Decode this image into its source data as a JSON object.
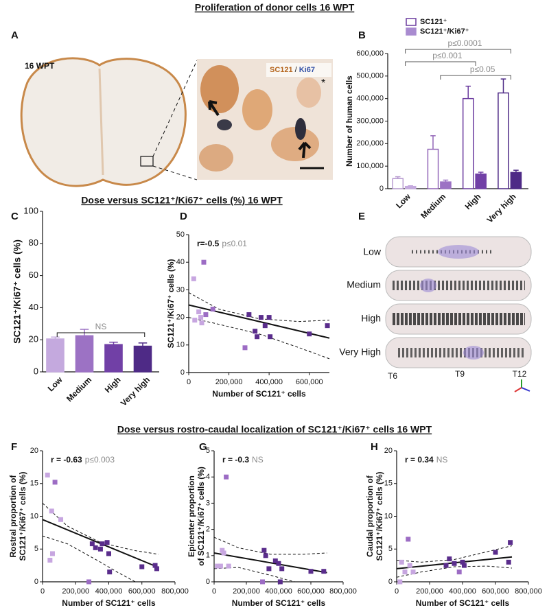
{
  "headings": [
    "Proliferation of donor cells 16 WPT",
    "Dose versus SC121⁺/Ki67⁺ cells (%) 16 WPT",
    "Dose versus rostro-caudal localization of SC121⁺/Ki67⁺ cells 16 WPT"
  ],
  "panels": [
    "A",
    "B",
    "C",
    "D",
    "E",
    "F",
    "G",
    "H"
  ],
  "image_a": {
    "label": "16 WPT",
    "stain_1": "SC121",
    "separator": "/",
    "stain_2": "Ki67",
    "marker": "*"
  },
  "image_e": {
    "rows": [
      "Low",
      "Medium",
      "High",
      "Very High"
    ],
    "levels": [
      "T6",
      "T9",
      "T12"
    ]
  },
  "chart_data": [
    {
      "type": "bar",
      "ylabel": [
        "Number of human cells"
      ],
      "categories": [
        "Low",
        "Medium",
        "High",
        "Very high"
      ],
      "series": [
        {
          "name": "SC121⁺",
          "color": "#ffffff",
          "strokes": [
            "#b79ad0",
            "#9266b8",
            "#6a3a9e",
            "#4e2a86"
          ],
          "values": [
            45000,
            175000,
            400000,
            425000
          ],
          "errors": [
            8000,
            60000,
            55000,
            62000
          ]
        },
        {
          "name": "SC121⁺/Ki67⁺",
          "color": "#a98bd0",
          "colors": [
            "#c4a9de",
            "#9c72c4",
            "#7140a6",
            "#4e2a86"
          ],
          "values": [
            10000,
            30000,
            65000,
            72000
          ],
          "errors": [
            3000,
            8000,
            8000,
            10000
          ]
        }
      ],
      "annotations": [
        {
          "text": "p≤0.0001",
          "from": "Low",
          "to": "Very high"
        },
        {
          "text": "p≤0.001",
          "from": "Low",
          "to": "High"
        },
        {
          "text": "p≤0.05",
          "from": "Medium",
          "to": "Very high"
        }
      ],
      "ylim": [
        0,
        600000
      ],
      "yticks": [
        0,
        {
          "value": 100000,
          "label": "100,000"
        },
        {
          "value": 200000,
          "label": "200,000"
        },
        {
          "value": 300000,
          "label": "300,000"
        },
        {
          "value": 400000,
          "label": "400,000"
        },
        {
          "value": 500000,
          "label": "500,000"
        },
        {
          "value": 600000,
          "label": "600,000"
        }
      ]
    },
    {
      "type": "bar",
      "ylabel": [
        "SC121⁺/Ki67⁺ cells (%)"
      ],
      "categories": [
        "Low",
        "Medium",
        "High",
        "Very high"
      ],
      "values": [
        20.5,
        22.5,
        17,
        16
      ],
      "errors": [
        1.2,
        4,
        1.5,
        2
      ],
      "colors": [
        "#c4a9de",
        "#9c72c4",
        "#7140a6",
        "#4e2a86"
      ],
      "annotations": [
        {
          "text": "NS",
          "from": "Low",
          "to": "Very high"
        }
      ],
      "ylim": [
        0,
        100
      ],
      "yticks": [
        0,
        20,
        40,
        60,
        80,
        100
      ]
    },
    {
      "type": "scatter",
      "ylabel": [
        "SC121⁺/Ki67⁺ cells (%)"
      ],
      "xlabel": "Number of SC121⁺ cells",
      "r_label": "r=-0.5",
      "p_label": "p≤0.01",
      "series": [
        {
          "color": "#c7a6e0",
          "x": [
            25000,
            30000,
            50000,
            60000,
            65000
          ],
          "values": [
            34,
            19,
            22,
            20,
            18
          ]
        },
        {
          "color": "#9c6cc4",
          "x": [
            75000,
            85000,
            120000,
            280000
          ],
          "values": [
            40,
            21,
            23,
            9
          ]
        },
        {
          "color": "#5a2d8c",
          "x": [
            300000,
            330000,
            340000,
            360000,
            380000,
            400000,
            405000,
            600000,
            690000
          ],
          "values": [
            21,
            15,
            13,
            20,
            17,
            20,
            13,
            14,
            17
          ]
        }
      ],
      "fit": {
        "x": [
          0,
          700000
        ],
        "y": [
          24.5,
          12.5
        ]
      },
      "ci_upper": {
        "x": [
          0,
          150000,
          350000,
          550000,
          700000
        ],
        "y": [
          29,
          23,
          19.5,
          18.5,
          19
        ]
      },
      "ci_lower": {
        "x": [
          0,
          150000,
          350000,
          550000,
          700000
        ],
        "y": [
          20,
          17.5,
          14,
          9,
          5
        ]
      },
      "xlim": [
        0,
        700000
      ],
      "ylim": [
        0,
        50
      ],
      "xticks": [
        0,
        {
          "value": 200000,
          "label": "200,000"
        },
        {
          "value": 400000,
          "label": "400,000"
        },
        {
          "value": 600000,
          "label": "600,000"
        }
      ],
      "yticks": [
        0,
        10,
        20,
        30,
        40,
        50
      ]
    },
    {
      "type": "scatter",
      "ylabel": [
        "Rostral proportion of",
        "SC121⁺/Ki67⁺ cells (%)"
      ],
      "xlabel": "Number of SC121⁺ cells",
      "r_label": "r = -0.63",
      "p_label": "p≤0.003",
      "series": [
        {
          "color": "#c7a6e0",
          "x": [
            30000,
            45000,
            55000,
            60000,
            110000
          ],
          "values": [
            16.3,
            3.3,
            10.8,
            4.3,
            9.5
          ]
        },
        {
          "color": "#9c6cc4",
          "x": [
            75000,
            280000
          ],
          "values": [
            15.2,
            0
          ]
        },
        {
          "color": "#5a2d8c",
          "x": [
            300000,
            320000,
            350000,
            360000,
            390000,
            400000,
            405000,
            600000,
            680000,
            690000
          ],
          "values": [
            5.8,
            5.2,
            5,
            5.8,
            6,
            4.3,
            1.5,
            2.3,
            2.5,
            2
          ]
        }
      ],
      "fit": {
        "x": [
          0,
          700000
        ],
        "y": [
          9.5,
          2.2
        ]
      },
      "ci_upper": {
        "x": [
          0,
          150000,
          350000,
          550000,
          700000
        ],
        "y": [
          12,
          8.5,
          6,
          4.8,
          4.2
        ]
      },
      "ci_lower": {
        "x": [
          0,
          150000,
          350000,
          450000,
          560000
        ],
        "y": [
          7,
          5.8,
          3,
          1.5,
          0
        ]
      },
      "xlim": [
        0,
        800000
      ],
      "ylim": [
        0,
        20
      ],
      "xticks": [
        0,
        {
          "value": 200000,
          "label": "200,000"
        },
        {
          "value": 400000,
          "label": "400,000"
        },
        {
          "value": 600000,
          "label": "600,000"
        },
        {
          "value": 800000,
          "label": "800,000"
        }
      ],
      "yticks": [
        0,
        5,
        10,
        15,
        20
      ]
    },
    {
      "type": "scatter",
      "ylabel": [
        "Epicenter proportion",
        "of SC121⁺/Ki67⁺ cells (%)"
      ],
      "xlabel": "Number of SC121⁺ cells",
      "r_label": "r = -0.3",
      "p_label": "NS",
      "series": [
        {
          "color": "#c7a6e0",
          "x": [
            20000,
            40000,
            50000,
            60000,
            90000
          ],
          "values": [
            0.6,
            0.6,
            1.2,
            1.1,
            0.6
          ]
        },
        {
          "color": "#9c6cc4",
          "x": [
            75000,
            300000
          ],
          "values": [
            4,
            0
          ]
        },
        {
          "color": "#5a2d8c",
          "x": [
            310000,
            320000,
            340000,
            380000,
            400000,
            410000,
            420000,
            600000,
            680000
          ],
          "values": [
            1.2,
            1,
            0.5,
            0.8,
            0.7,
            0,
            0.5,
            0.4,
            0.4
          ]
        }
      ],
      "fit": {
        "x": [
          0,
          700000
        ],
        "y": [
          1.1,
          0.35
        ]
      },
      "ci_upper": {
        "x": [
          0,
          150000,
          350000,
          550000,
          700000
        ],
        "y": [
          1.7,
          1.3,
          1.05,
          1.05,
          1.1
        ]
      },
      "ci_lower": {
        "x": [
          0,
          150000,
          350000,
          450000,
          500000
        ],
        "y": [
          0.5,
          0.55,
          0.25,
          0.08,
          0
        ]
      },
      "xlim": [
        0,
        800000
      ],
      "ylim": [
        0,
        5
      ],
      "xticks": [
        0,
        {
          "value": 200000,
          "label": "200,000"
        },
        {
          "value": 400000,
          "label": "400,000"
        },
        {
          "value": 600000,
          "label": "600,000"
        },
        {
          "value": 800000,
          "label": "800,000"
        }
      ],
      "yticks": [
        0,
        1,
        2,
        3,
        4,
        5
      ]
    },
    {
      "type": "scatter",
      "ylabel": [
        "Caudal proportion of",
        "SC121⁺/Ki67⁺ cells (%)"
      ],
      "xlabel": "Number of SC121⁺ cells",
      "r_label": "r = 0.34",
      "p_label": "NS",
      "series": [
        {
          "color": "#c7a6e0",
          "x": [
            20000,
            30000,
            50000,
            80000,
            100000
          ],
          "values": [
            0,
            3,
            1.5,
            2.5,
            1.5
          ]
        },
        {
          "color": "#9c6cc4",
          "x": [
            70000,
            380000
          ],
          "values": [
            6.5,
            1.5
          ]
        },
        {
          "color": "#5a2d8c",
          "x": [
            300000,
            320000,
            350000,
            400000,
            410000,
            600000,
            680000,
            690000
          ],
          "values": [
            2.5,
            3.5,
            2.8,
            3,
            2.5,
            4.5,
            3,
            6
          ]
        }
      ],
      "fit": {
        "x": [
          0,
          700000
        ],
        "y": [
          2,
          3.8
        ]
      },
      "ci_upper": {
        "x": [
          0,
          150000,
          350000,
          550000,
          700000
        ],
        "y": [
          3.3,
          3,
          3.4,
          4.6,
          5.5
        ]
      },
      "ci_lower": {
        "x": [
          0,
          150000,
          350000,
          550000,
          700000
        ],
        "y": [
          0.7,
          1.5,
          2.3,
          2.4,
          2.1
        ]
      },
      "xlim": [
        0,
        800000
      ],
      "ylim": [
        0,
        20
      ],
      "xticks": [
        0,
        {
          "value": 200000,
          "label": "200,000"
        },
        {
          "value": 400000,
          "label": "400,000"
        },
        {
          "value": 600000,
          "label": "600,000"
        },
        {
          "value": 800000,
          "label": "800,000"
        }
      ],
      "yticks": [
        0,
        5,
        10,
        15,
        20
      ]
    }
  ]
}
